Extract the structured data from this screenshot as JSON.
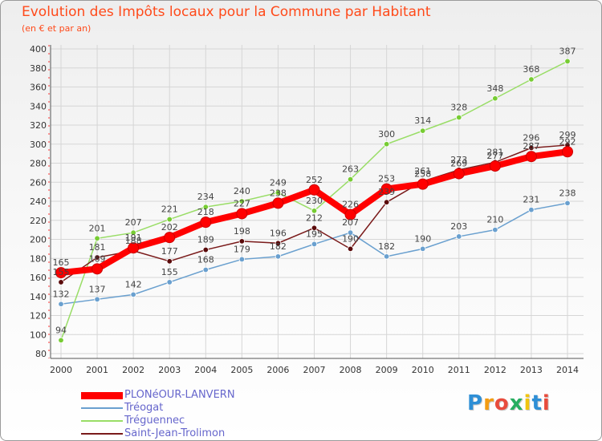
{
  "chart_data": {
    "type": "line",
    "title": "Evolution des Impôts locaux pour la Commune par Habitant",
    "subtitle": "(en € et par an)",
    "xlabel": "",
    "ylabel": "",
    "x": [
      2000,
      2001,
      2002,
      2003,
      2004,
      2005,
      2006,
      2007,
      2008,
      2009,
      2010,
      2011,
      2012,
      2013,
      2014
    ],
    "ylim": [
      80,
      400
    ],
    "yticks": [
      80,
      100,
      120,
      140,
      160,
      180,
      200,
      220,
      240,
      260,
      280,
      300,
      320,
      340,
      360,
      380,
      400
    ],
    "grid": true,
    "legend": "bottom-left",
    "series": [
      {
        "name": "PLONéOUR-LANVERN",
        "color": "#ff0000",
        "style": "thick",
        "values": [
          165,
          169,
          191,
          202,
          218,
          227,
          238,
          252,
          226,
          253,
          258,
          269,
          277,
          287,
          292
        ]
      },
      {
        "name": "Tréogat",
        "color": "#6aa0cf",
        "style": "thin",
        "values": [
          132,
          137,
          142,
          155,
          168,
          179,
          182,
          195,
          207,
          182,
          190,
          203,
          210,
          231,
          238
        ]
      },
      {
        "name": "Tréguennec",
        "color": "#99dd66",
        "style": "thin",
        "values": [
          94,
          201,
          207,
          221,
          234,
          240,
          249,
          230,
          263,
          300,
          314,
          328,
          348,
          368,
          387
        ]
      },
      {
        "name": "Saint-Jean-Trolimon",
        "color": "#7a1a1a",
        "style": "thin",
        "values": [
          155,
          181,
          188,
          177,
          189,
          198,
          196,
          212,
          190,
          239,
          261,
          273,
          281,
          296,
          299
        ]
      }
    ]
  },
  "logo": {
    "letters": [
      "P",
      "r",
      "o",
      "x",
      "i",
      "t",
      "i"
    ]
  }
}
